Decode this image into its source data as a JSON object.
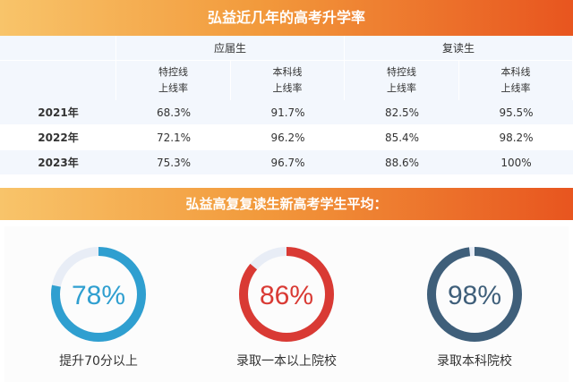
{
  "title": "弘益近几年的高考升学率",
  "table": {
    "groups": [
      "应届生",
      "复读生"
    ],
    "subheaders": [
      [
        "特控线",
        "上线率"
      ],
      [
        "本科线",
        "上线率"
      ],
      [
        "特控线",
        "上线率"
      ],
      [
        "本科线",
        "上线率"
      ]
    ],
    "rows": [
      {
        "year": "2021年",
        "values": [
          "68.3%",
          "91.7%",
          "82.5%",
          "95.5%"
        ]
      },
      {
        "year": "2022年",
        "values": [
          "72.1%",
          "96.2%",
          "85.4%",
          "98.2%"
        ]
      },
      {
        "year": "2023年",
        "values": [
          "75.3%",
          "96.7%",
          "88.6%",
          "100%"
        ]
      }
    ]
  },
  "subtitle": "弘益高复复读生新高考学生平均：",
  "stats": [
    {
      "value": "78%",
      "fraction": 0.78,
      "label": "提升70分以上",
      "color": "#2f9fd0"
    },
    {
      "value": "86%",
      "fraction": 0.86,
      "label": "录取一本以上院校",
      "color": "#d93a34"
    },
    {
      "value": "98%",
      "fraction": 0.98,
      "label": "录取本科院校",
      "color": "#3f5f7a"
    }
  ],
  "colors": {
    "track": "#e8edf6",
    "banner_start": "#f8c46a",
    "banner_end": "#e8551f",
    "table_shade": "#f3f7fd"
  }
}
